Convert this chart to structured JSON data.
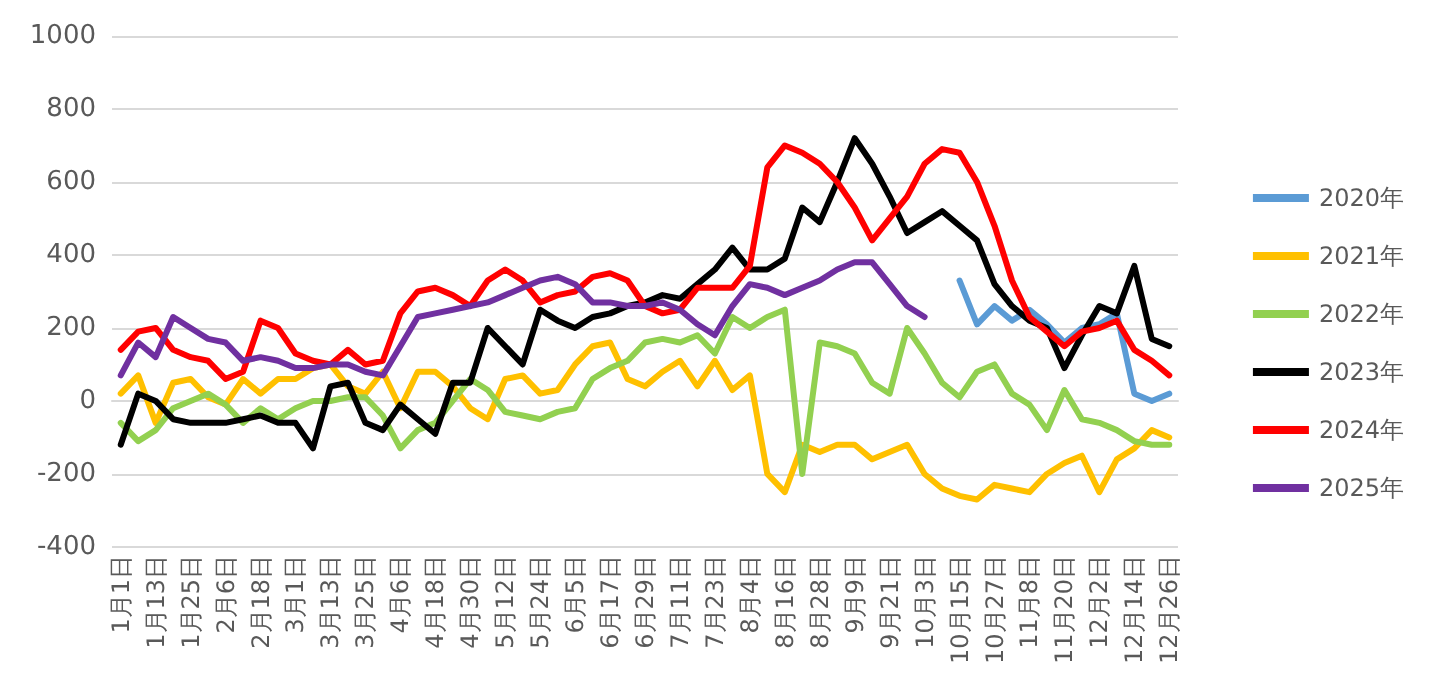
{
  "chart_data": {
    "type": "line",
    "categories": [
      "1月1日",
      null,
      "1月13日",
      null,
      "1月25日",
      null,
      "2月6日",
      null,
      "2月18日",
      null,
      "3月1日",
      null,
      "3月13日",
      null,
      "3月25日",
      null,
      "4月6日",
      null,
      "4月18日",
      null,
      "4月30日",
      null,
      "5月12日",
      null,
      "5月24日",
      null,
      "6月5日",
      null,
      "6月17日",
      null,
      "6月29日",
      null,
      "7月11日",
      null,
      "7月23日",
      null,
      "8月4日",
      null,
      "8月16日",
      null,
      "8月28日",
      null,
      "9月9日",
      null,
      "9月21日",
      null,
      "10月3日",
      null,
      "10月15日",
      null,
      "10月27日",
      null,
      "11月8日",
      null,
      "11月20日",
      null,
      "12月2日",
      null,
      "12月14日",
      null,
      "12月26日"
    ],
    "series": [
      {
        "name": "2020年",
        "color": "#5b9bd5",
        "values": [
          null,
          null,
          null,
          null,
          null,
          null,
          null,
          null,
          null,
          null,
          null,
          null,
          null,
          null,
          null,
          null,
          null,
          null,
          null,
          null,
          null,
          null,
          null,
          null,
          null,
          null,
          null,
          null,
          null,
          null,
          null,
          null,
          null,
          null,
          null,
          null,
          null,
          null,
          null,
          null,
          null,
          null,
          null,
          null,
          null,
          null,
          null,
          null,
          330,
          210,
          260,
          220,
          250,
          210,
          160,
          200,
          210,
          240,
          20,
          0,
          20
        ]
      },
      {
        "name": "2021年",
        "color": "#ffc000",
        "values": [
          20,
          70,
          -60,
          50,
          60,
          10,
          -10,
          60,
          20,
          60,
          60,
          90,
          100,
          40,
          20,
          80,
          -20,
          80,
          80,
          40,
          -20,
          -50,
          60,
          70,
          20,
          30,
          100,
          150,
          160,
          60,
          40,
          80,
          110,
          40,
          110,
          30,
          70,
          -200,
          -250,
          -120,
          -140,
          -120,
          -120,
          -160,
          -140,
          -120,
          -200,
          -240,
          -260,
          -270,
          -230,
          -240,
          -250,
          -200,
          -170,
          -150,
          -250,
          -160,
          -130,
          -80,
          -100
        ]
      },
      {
        "name": "2022年",
        "color": "#92d050",
        "values": [
          -60,
          -110,
          -80,
          -20,
          0,
          20,
          -10,
          -60,
          -20,
          -50,
          -20,
          0,
          0,
          10,
          10,
          -40,
          -130,
          -80,
          -60,
          0,
          60,
          30,
          -30,
          -40,
          -50,
          -30,
          -20,
          60,
          90,
          110,
          160,
          170,
          160,
          180,
          130,
          230,
          200,
          230,
          250,
          -200,
          160,
          150,
          130,
          50,
          20,
          200,
          130,
          50,
          10,
          80,
          100,
          20,
          -10,
          -80,
          30,
          -50,
          -60,
          -80,
          -110,
          -120,
          -120
        ]
      },
      {
        "name": "2023年",
        "color": "#000000",
        "values": [
          -120,
          20,
          0,
          -50,
          -60,
          -60,
          -60,
          -50,
          -40,
          -60,
          -60,
          -130,
          40,
          50,
          -60,
          -80,
          -10,
          -50,
          -90,
          50,
          50,
          200,
          150,
          100,
          250,
          220,
          200,
          230,
          240,
          260,
          270,
          290,
          280,
          320,
          360,
          420,
          360,
          360,
          390,
          530,
          490,
          600,
          720,
          650,
          560,
          460,
          490,
          520,
          480,
          440,
          320,
          260,
          220,
          200,
          90,
          180,
          260,
          240,
          370,
          170,
          150
        ]
      },
      {
        "name": "2024年",
        "color": "#ff0000",
        "values": [
          140,
          190,
          200,
          140,
          120,
          110,
          60,
          80,
          220,
          200,
          130,
          110,
          100,
          140,
          100,
          110,
          240,
          300,
          310,
          290,
          260,
          330,
          360,
          330,
          270,
          290,
          300,
          340,
          350,
          330,
          260,
          240,
          250,
          310,
          310,
          310,
          370,
          640,
          700,
          680,
          650,
          600,
          530,
          440,
          500,
          560,
          650,
          690,
          680,
          600,
          480,
          330,
          230,
          190,
          150,
          190,
          200,
          220,
          140,
          110,
          70
        ]
      },
      {
        "name": "2025年",
        "color": "#7030a0",
        "values": [
          70,
          160,
          120,
          230,
          200,
          170,
          160,
          110,
          120,
          110,
          90,
          90,
          100,
          100,
          80,
          70,
          150,
          230,
          240,
          250,
          260,
          270,
          290,
          310,
          330,
          340,
          320,
          270,
          270,
          260,
          260,
          270,
          250,
          210,
          180,
          260,
          320,
          310,
          290,
          310,
          330,
          360,
          380,
          380,
          320,
          260,
          230,
          null,
          null,
          null,
          null,
          null,
          null,
          null,
          null,
          null,
          null,
          null,
          null,
          null,
          null
        ]
      }
    ],
    "ylim": [
      -400,
      1000
    ],
    "yticks": [
      -400,
      -200,
      0,
      200,
      400,
      600,
      800,
      1000
    ],
    "grid": "y",
    "legend": "right",
    "marker": "none",
    "line_style": "solid"
  }
}
